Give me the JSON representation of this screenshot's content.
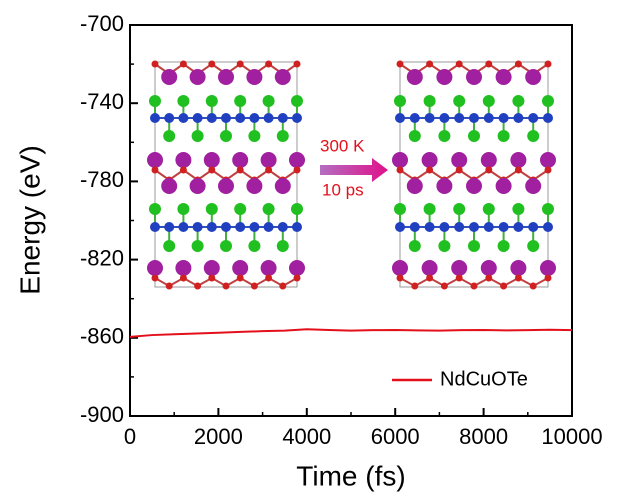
{
  "chart_data": {
    "type": "line",
    "x_label": "Time (fs)",
    "y_label": "Energy (eV)",
    "x": [
      0,
      500,
      1000,
      1500,
      2000,
      2500,
      3000,
      3500,
      4000,
      4500,
      5000,
      5500,
      6000,
      6500,
      7000,
      7500,
      8000,
      8500,
      9000,
      9500,
      10000
    ],
    "series": [
      {
        "name": "NdCuOTe",
        "color": "#e3101b",
        "values": [
          -859.5,
          -858.6,
          -858.2,
          -857.8,
          -857.4,
          -857.0,
          -856.6,
          -856.3,
          -855.6,
          -856.0,
          -856.3,
          -856.1,
          -856.0,
          -856.2,
          -856.3,
          -856.1,
          -856.0,
          -856.2,
          -856.1,
          -855.9,
          -856.1
        ]
      }
    ],
    "xlim": [
      0,
      10000
    ],
    "xticks": [
      0,
      2000,
      4000,
      6000,
      8000,
      10000
    ],
    "ylim": [
      -900,
      -700
    ],
    "yticks": [
      -900,
      -860,
      -820,
      -780,
      -740,
      -700
    ],
    "minor_ticks": true,
    "legend": "lower right",
    "annotations": [
      "300 K",
      "10 ps"
    ]
  }
}
